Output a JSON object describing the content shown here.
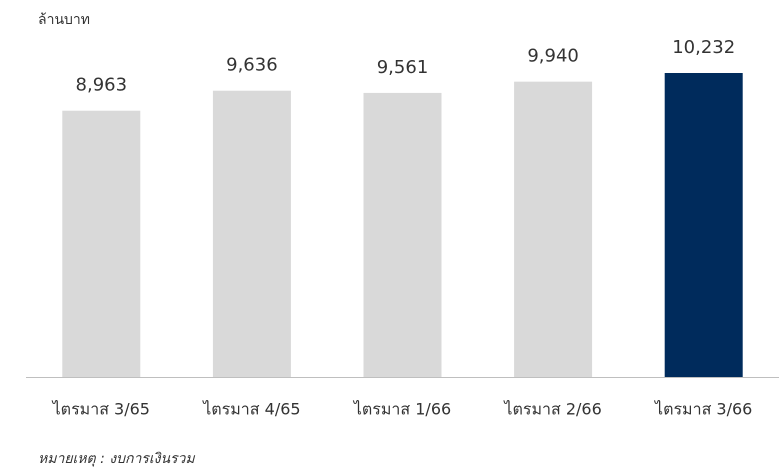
{
  "chart_data": {
    "type": "bar",
    "y_axis_label": "ล้านบาท",
    "categories": [
      "ไตรมาส 3/65",
      "ไตรมาส 4/65",
      "ไตรมาส 1/66",
      "ไตรมาส 2/66",
      "ไตรมาส 3/66"
    ],
    "values": [
      8963,
      9636,
      9561,
      9940,
      10232
    ],
    "value_labels": [
      "8,963",
      "9,636",
      "9,561",
      "9,940",
      "10,232"
    ],
    "colors": [
      "#d9d9d9",
      "#d9d9d9",
      "#d9d9d9",
      "#d9d9d9",
      "#002b5c"
    ],
    "note": "หมายเหตุ : งบการเงินรวม"
  }
}
